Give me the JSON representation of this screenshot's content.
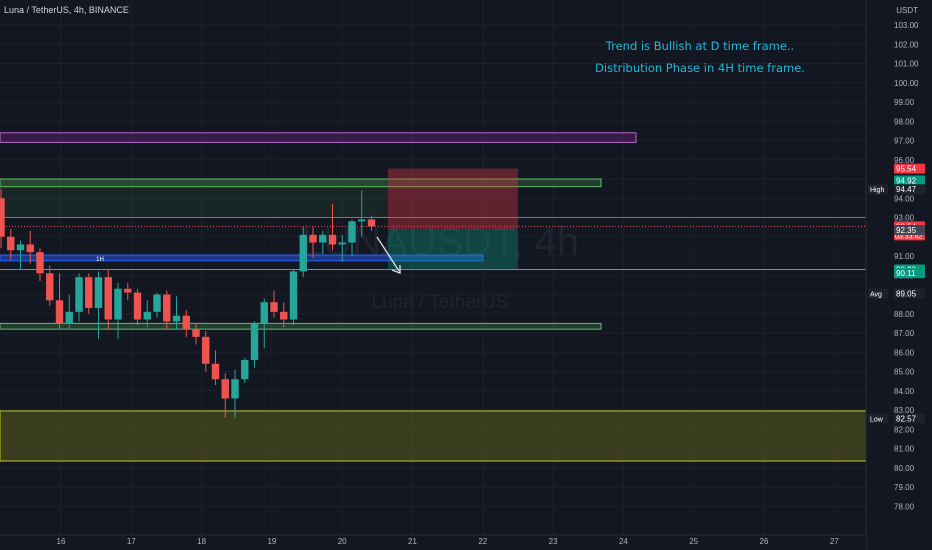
{
  "header": {
    "symbol": "Luna / TetherUS, 4h, BINANCE",
    "currency": "USDT"
  },
  "watermark": {
    "line1": "LUNAUSDT, 4h",
    "line2": "Luna / TetherUS"
  },
  "annotations": [
    "Trend is Bullish at D time frame..",
    "Distribution Phase in 4H time frame."
  ],
  "zone_labels": {
    "h1": "1H"
  },
  "colors": {
    "background": "#131722",
    "grid": "#1f2330",
    "up": "#26a69a",
    "down": "#ef5350",
    "annotation": "#22b7d8",
    "purple_zone": "#9c27b0",
    "green_zone": "#4caf50",
    "blue_zone": "#2962ff",
    "yellow_zone": "#c0c020"
  },
  "chart_data": {
    "type": "candlestick",
    "title": "Luna / TetherUS, 4h, BINANCE",
    "y_axis": {
      "ticks": [
        103,
        102,
        101,
        100,
        99,
        98,
        97,
        96,
        95,
        94,
        93,
        92,
        91,
        90,
        89,
        88,
        87,
        86,
        85,
        84,
        83,
        82,
        81,
        80,
        79,
        78
      ],
      "ylim": [
        77.4,
        104.6
      ]
    },
    "x_axis": {
      "ticks": [
        {
          "label": "16",
          "date": "16"
        },
        {
          "label": "17",
          "date": "17"
        },
        {
          "label": "18",
          "date": "18"
        },
        {
          "label": "19",
          "date": "19"
        },
        {
          "label": "20",
          "date": "20"
        },
        {
          "label": "21",
          "date": "21"
        },
        {
          "label": "22",
          "date": "22"
        },
        {
          "label": "23",
          "date": "23"
        },
        {
          "label": "24",
          "date": "24"
        },
        {
          "label": "25",
          "date": "25"
        },
        {
          "label": "26",
          "date": "26"
        },
        {
          "label": "27",
          "date": "27"
        }
      ]
    },
    "candles": [
      {
        "o": 94.0,
        "h": 94.5,
        "l": 91.4,
        "c": 92.0
      },
      {
        "o": 92.0,
        "h": 92.4,
        "l": 90.8,
        "c": 91.3
      },
      {
        "o": 91.3,
        "h": 91.8,
        "l": 90.3,
        "c": 91.6
      },
      {
        "o": 91.6,
        "h": 92.3,
        "l": 90.6,
        "c": 91.2
      },
      {
        "o": 91.2,
        "h": 91.4,
        "l": 89.7,
        "c": 90.1
      },
      {
        "o": 90.1,
        "h": 90.5,
        "l": 88.4,
        "c": 88.7
      },
      {
        "o": 88.7,
        "h": 90.1,
        "l": 87.2,
        "c": 87.5
      },
      {
        "o": 87.5,
        "h": 89.0,
        "l": 87.2,
        "c": 88.1
      },
      {
        "o": 88.1,
        "h": 90.1,
        "l": 87.6,
        "c": 89.9
      },
      {
        "o": 89.9,
        "h": 90.1,
        "l": 88.0,
        "c": 88.3
      },
      {
        "o": 88.3,
        "h": 90.2,
        "l": 86.7,
        "c": 89.9
      },
      {
        "o": 89.9,
        "h": 90.3,
        "l": 87.2,
        "c": 87.7
      },
      {
        "o": 87.7,
        "h": 89.6,
        "l": 86.7,
        "c": 89.3
      },
      {
        "o": 89.3,
        "h": 89.6,
        "l": 88.7,
        "c": 89.1
      },
      {
        "o": 89.1,
        "h": 89.3,
        "l": 87.4,
        "c": 87.7
      },
      {
        "o": 87.7,
        "h": 88.7,
        "l": 87.3,
        "c": 88.1
      },
      {
        "o": 88.1,
        "h": 89.1,
        "l": 87.8,
        "c": 89.0
      },
      {
        "o": 89.0,
        "h": 89.2,
        "l": 87.2,
        "c": 87.6
      },
      {
        "o": 87.6,
        "h": 88.9,
        "l": 87.2,
        "c": 87.9
      },
      {
        "o": 87.9,
        "h": 88.2,
        "l": 86.8,
        "c": 87.2
      },
      {
        "o": 87.2,
        "h": 87.5,
        "l": 86.4,
        "c": 86.8
      },
      {
        "o": 86.8,
        "h": 87.1,
        "l": 85.0,
        "c": 85.4
      },
      {
        "o": 85.4,
        "h": 86.1,
        "l": 84.3,
        "c": 84.6
      },
      {
        "o": 84.6,
        "h": 84.9,
        "l": 82.6,
        "c": 83.6
      },
      {
        "o": 83.6,
        "h": 85.1,
        "l": 82.6,
        "c": 84.6
      },
      {
        "o": 84.6,
        "h": 85.7,
        "l": 84.4,
        "c": 85.6
      },
      {
        "o": 85.6,
        "h": 87.6,
        "l": 85.2,
        "c": 87.5
      },
      {
        "o": 87.5,
        "h": 88.8,
        "l": 86.2,
        "c": 88.6
      },
      {
        "o": 88.6,
        "h": 89.2,
        "l": 87.8,
        "c": 88.1
      },
      {
        "o": 88.1,
        "h": 88.6,
        "l": 87.3,
        "c": 87.7
      },
      {
        "o": 87.7,
        "h": 90.3,
        "l": 87.4,
        "c": 90.2
      },
      {
        "o": 90.2,
        "h": 92.5,
        "l": 89.9,
        "c": 92.1
      },
      {
        "o": 92.1,
        "h": 92.5,
        "l": 90.9,
        "c": 91.7
      },
      {
        "o": 91.7,
        "h": 92.3,
        "l": 91.1,
        "c": 92.1
      },
      {
        "o": 92.1,
        "h": 93.7,
        "l": 91.3,
        "c": 91.6
      },
      {
        "o": 91.6,
        "h": 92.1,
        "l": 90.7,
        "c": 91.7
      },
      {
        "o": 91.7,
        "h": 92.9,
        "l": 91.0,
        "c": 92.8
      },
      {
        "o": 92.8,
        "h": 94.4,
        "l": 92.0,
        "c": 92.9
      },
      {
        "o": 92.9,
        "h": 93.1,
        "l": 92.3,
        "c": 92.54
      }
    ],
    "zones": [
      {
        "type": "supply-zone-purple",
        "top": 97.4,
        "bottom": 96.9
      },
      {
        "type": "resistance-zone-green",
        "top": 95.0,
        "bottom": 94.6
      },
      {
        "type": "resistance-area",
        "top": 95.0,
        "bottom": 93.0
      },
      {
        "type": "zone-1h-blue",
        "top": 91.05,
        "bottom": 90.75,
        "label": "1H"
      },
      {
        "type": "support-zone-green",
        "top": 87.5,
        "bottom": 87.2
      },
      {
        "type": "demand-zone-yellow",
        "top": 82.95,
        "bottom": 80.35
      }
    ],
    "position": {
      "type": "short",
      "entry": 92.35,
      "stop": 95.54,
      "target": 90.3
    },
    "price_labels": [
      {
        "text": "95.54",
        "value": 95.54,
        "color": "#f23645"
      },
      {
        "text": "94.92",
        "value": 94.92,
        "color": "#089981"
      },
      {
        "text": "94.47",
        "value": 94.47,
        "color": "#1e222d",
        "tag": "High"
      },
      {
        "text": "92.54",
        "value": 92.54,
        "color": "#f23645",
        "sub": "03:33:42"
      },
      {
        "text": "92.35",
        "value": 92.35,
        "color": "#434651"
      },
      {
        "text": "90.30",
        "value": 90.3,
        "color": "#089981"
      },
      {
        "text": "90.11",
        "value": 90.11,
        "color": "#089981"
      },
      {
        "text": "89.05",
        "value": 89.05,
        "color": "#1e222d",
        "tag": "Avg"
      },
      {
        "text": "82.57",
        "value": 82.57,
        "color": "#1e222d",
        "tag": "Low"
      }
    ]
  }
}
